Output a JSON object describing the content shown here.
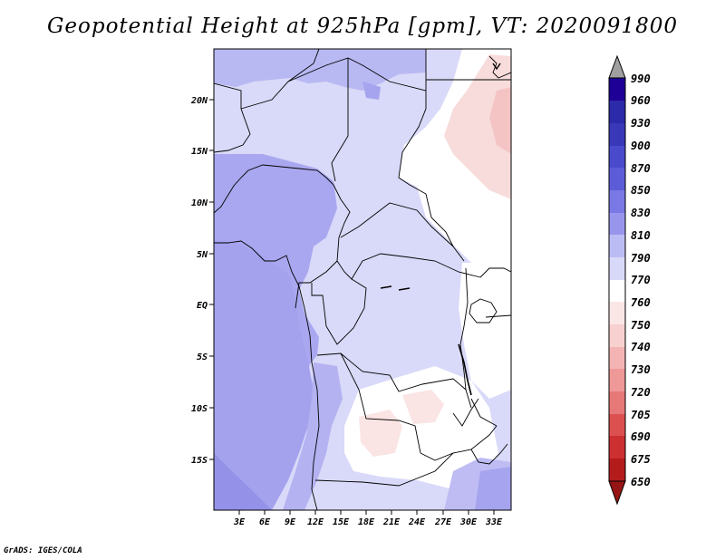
{
  "title": "Geopotential Height at 925hPa [gpm], VT: 2020091800",
  "footer": "GrADS: IGES/COLA",
  "map": {
    "lat_ticks": [
      "20N",
      "15N",
      "10N",
      "5N",
      "EQ",
      "5S",
      "10S",
      "15S"
    ],
    "lon_ticks": [
      "3E",
      "6E",
      "9E",
      "12E",
      "15E",
      "18E",
      "21E",
      "24E",
      "27E",
      "30E",
      "33E"
    ]
  },
  "colorbar": {
    "levels": [
      990,
      960,
      930,
      900,
      870,
      850,
      830,
      810,
      790,
      770,
      760,
      750,
      740,
      730,
      720,
      705,
      690,
      675,
      650
    ],
    "colors": {
      "over": "#a0a0a0",
      "c1": "#1e0096",
      "c2": "#2c2aa8",
      "c3": "#3838b8",
      "c4": "#4a4acc",
      "c5": "#5d5cd8",
      "c6": "#7a78e4",
      "c7": "#9896ec",
      "c8": "#bcbcf4",
      "c9": "#d8d8f8",
      "c10": "#ffffff",
      "c11": "#fbe6e6",
      "c12": "#f8d0d0",
      "c13": "#f4b4b4",
      "c14": "#ee9898",
      "c15": "#e67878",
      "c16": "#dc5050",
      "c17": "#cc3030",
      "c18": "#b41c1c",
      "c19": "#961414"
    }
  }
}
